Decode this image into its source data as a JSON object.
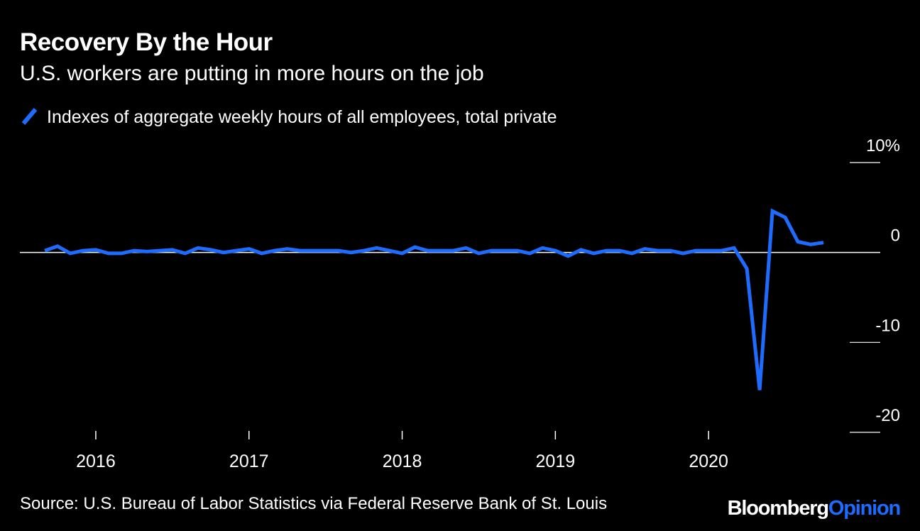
{
  "chart_data": {
    "type": "line",
    "title": "Recovery By the Hour",
    "subtitle": "U.S. workers are putting in more hours on the job",
    "source": "Source: U.S. Bureau of Labor Statistics via Federal Reserve Bank of St. Louis",
    "series": [
      {
        "name": "Indexes of aggregate weekly hours of all employees, total private",
        "color": "#1e6cff",
        "start": "2015-09",
        "frequency": "monthly",
        "values": [
          0.2,
          0.7,
          -0.1,
          0.2,
          0.3,
          -0.1,
          -0.1,
          0.2,
          0.1,
          0.2,
          0.3,
          -0.1,
          0.5,
          0.3,
          0.0,
          0.2,
          0.4,
          -0.1,
          0.2,
          0.4,
          0.2,
          0.2,
          0.2,
          0.2,
          0.0,
          0.2,
          0.5,
          0.2,
          -0.1,
          0.6,
          0.2,
          0.2,
          0.2,
          0.5,
          -0.1,
          0.2,
          0.2,
          0.2,
          -0.1,
          0.5,
          0.2,
          -0.4,
          0.3,
          -0.1,
          0.2,
          0.2,
          -0.1,
          0.4,
          0.2,
          0.2,
          -0.1,
          0.2,
          0.2,
          0.2,
          0.5,
          -1.8,
          -15.3,
          4.6,
          3.9,
          1.2,
          0.9,
          1.1
        ]
      }
    ],
    "x_ticks": [
      "2016",
      "2017",
      "2018",
      "2019",
      "2020"
    ],
    "y_ticks": [
      {
        "value": 10,
        "label": "10%"
      },
      {
        "value": 0,
        "label": "0"
      },
      {
        "value": -10,
        "label": "-10"
      },
      {
        "value": -20,
        "label": "-20"
      }
    ],
    "ylim": [
      -20,
      10
    ],
    "xlim": [
      "2015-09",
      "2020-11"
    ]
  },
  "brand": {
    "part1": "Bloomberg",
    "part2": "Opinion",
    "accent": "#1e6cff"
  }
}
